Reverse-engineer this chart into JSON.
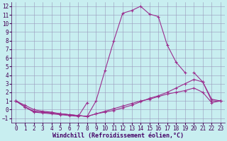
{
  "x": [
    0,
    1,
    2,
    3,
    4,
    5,
    6,
    7,
    8,
    9,
    10,
    11,
    12,
    13,
    14,
    15,
    16,
    17,
    18,
    19,
    20,
    21,
    22,
    23
  ],
  "line1": [
    1.0,
    0.5,
    0.0,
    -0.2,
    -0.3,
    -0.5,
    -0.6,
    -0.7,
    -0.8,
    1.0,
    4.5,
    8.0,
    11.2,
    11.5,
    12.0,
    11.1,
    10.8,
    7.5,
    5.5,
    4.3,
    null,
    null,
    null,
    null
  ],
  "line2": [
    1.0,
    0.3,
    -0.3,
    -0.4,
    -0.5,
    -0.6,
    -0.7,
    -0.8,
    0.8,
    null,
    null,
    null,
    null,
    null,
    null,
    null,
    null,
    null,
    null,
    null,
    4.3,
    3.2,
    1.0,
    1.0
  ],
  "line3": [
    1.0,
    0.3,
    -0.2,
    -0.3,
    -0.4,
    -0.5,
    -0.6,
    -0.7,
    -0.8,
    -0.5,
    -0.3,
    -0.1,
    0.2,
    0.5,
    0.9,
    1.3,
    1.6,
    2.0,
    2.5,
    3.0,
    3.5,
    3.2,
    1.2,
    1.0
  ],
  "line4": [
    1.0,
    0.3,
    -0.2,
    -0.3,
    -0.4,
    -0.5,
    -0.6,
    -0.7,
    -0.8,
    -0.5,
    -0.2,
    0.1,
    0.4,
    0.7,
    1.0,
    1.2,
    1.5,
    1.8,
    2.0,
    2.2,
    2.5,
    2.0,
    0.8,
    1.0
  ],
  "line_color": "#9B2D8E",
  "bg_color": "#C8EEF0",
  "grid_color": "#9999BB",
  "xlabel": "Windchill (Refroidissement éolien,°C)",
  "xlim": [
    -0.5,
    23.5
  ],
  "ylim": [
    -1.5,
    12.5
  ],
  "yticks": [
    -1,
    0,
    1,
    2,
    3,
    4,
    5,
    6,
    7,
    8,
    9,
    10,
    11,
    12
  ],
  "xticks": [
    0,
    1,
    2,
    3,
    4,
    5,
    6,
    7,
    8,
    9,
    10,
    11,
    12,
    13,
    14,
    15,
    16,
    17,
    18,
    19,
    20,
    21,
    22,
    23
  ]
}
